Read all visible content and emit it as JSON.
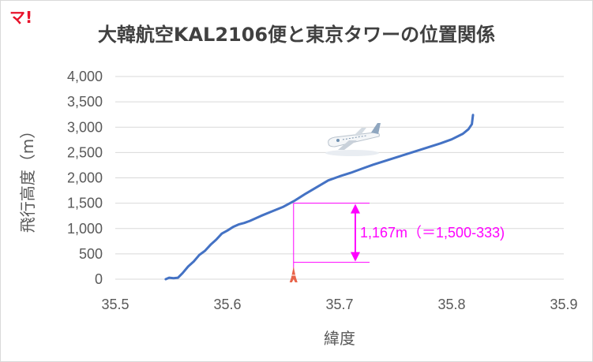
{
  "logo_text": "マ!",
  "chart_data": {
    "type": "line",
    "title": "大韓航空KAL2106便と東京タワーの位置関係",
    "xlabel": "緯度",
    "ylabel": "飛行高度（m）",
    "xlim": [
      35.5,
      35.9
    ],
    "ylim": [
      0,
      4000
    ],
    "x_ticks": [
      "35.5",
      "35.6",
      "35.7",
      "35.8",
      "35.9"
    ],
    "y_ticks": [
      "0",
      "500",
      "1,000",
      "1,500",
      "2,000",
      "2,500",
      "3,000",
      "3,500",
      "4,000"
    ],
    "grid": true,
    "series": [
      {
        "color": "#4472c4",
        "x": [
          35.545,
          35.548,
          35.552,
          35.556,
          35.56,
          35.565,
          35.57,
          35.575,
          35.58,
          35.585,
          35.59,
          35.595,
          35.6,
          35.605,
          35.61,
          35.615,
          35.62,
          35.63,
          35.64,
          35.65,
          35.66,
          35.67,
          35.68,
          35.69,
          35.7,
          35.71,
          35.72,
          35.73,
          35.74,
          35.75,
          35.76,
          35.77,
          35.78,
          35.79,
          35.8,
          35.81,
          35.815,
          35.818,
          35.819
        ],
        "y": [
          0,
          30,
          20,
          30,
          120,
          250,
          350,
          480,
          560,
          680,
          780,
          900,
          960,
          1030,
          1080,
          1110,
          1150,
          1250,
          1340,
          1430,
          1550,
          1690,
          1820,
          1950,
          2030,
          2100,
          2180,
          2260,
          2330,
          2400,
          2470,
          2540,
          2610,
          2680,
          2760,
          2870,
          2960,
          3060,
          3240
        ]
      }
    ],
    "annotation": {
      "text": "1,167m（＝1,500-333)",
      "color": "#ff00ff",
      "upper_altitude": 1500,
      "lower_altitude": 333,
      "tower_latitude": 35.659
    },
    "markers": [
      "tokyo-tower-icon",
      "airplane-icon"
    ]
  }
}
